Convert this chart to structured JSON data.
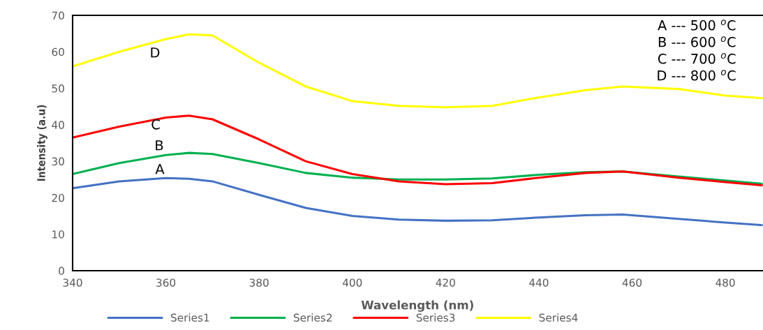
{
  "chart_data": {
    "type": "line",
    "xlabel": "Wavelength (nm)",
    "ylabel": "Intensity (a.u)",
    "x": [
      340,
      350,
      360,
      365,
      370,
      380,
      390,
      400,
      410,
      420,
      430,
      440,
      450,
      458,
      470,
      480,
      488
    ],
    "series": [
      {
        "name": "Series1",
        "color": "#4472c4",
        "values": [
          22.6,
          24.5,
          25.4,
          25.2,
          24.5,
          20.8,
          17.2,
          15,
          14,
          13.7,
          13.8,
          14.6,
          15.2,
          15.4,
          14.2,
          13.2,
          12.5
        ]
      },
      {
        "name": "Series2",
        "color": "#00b050",
        "values": [
          26.5,
          29.5,
          31.7,
          32.3,
          32,
          29.5,
          26.8,
          25.5,
          25,
          25,
          25.3,
          26.3,
          27,
          27.2,
          25.8,
          24.7,
          23.8
        ]
      },
      {
        "name": "Series3",
        "color": "#ff0000",
        "values": [
          36.5,
          39.5,
          42,
          42.5,
          41.5,
          36,
          30,
          26.5,
          24.5,
          23.7,
          24,
          25.5,
          26.8,
          27.2,
          25.5,
          24.3,
          23.4
        ]
      },
      {
        "name": "Series4",
        "color": "#ffff00",
        "values": [
          56,
          60,
          63.5,
          64.8,
          64.5,
          57,
          50.5,
          46.5,
          45.2,
          44.8,
          45.2,
          47.5,
          49.5,
          50.5,
          49.8,
          48,
          47.3
        ]
      }
    ],
    "xlim": [
      340,
      488
    ],
    "xticks": [
      340,
      360,
      380,
      400,
      420,
      440,
      460,
      480
    ],
    "ylim": [
      0,
      70
    ],
    "yticks": [
      0,
      10,
      20,
      30,
      40,
      50,
      60,
      70
    ],
    "grid": false,
    "legend": "bottom",
    "marker": "none",
    "line_style": "solid",
    "annotations": [
      "A",
      "B",
      "C",
      "D",
      "A --- 500 $^{o}$C",
      "B --- 600 $^{o}$C",
      "C --- 700 $^{o}$C",
      "D --- 800 $^{o}$C"
    ]
  }
}
